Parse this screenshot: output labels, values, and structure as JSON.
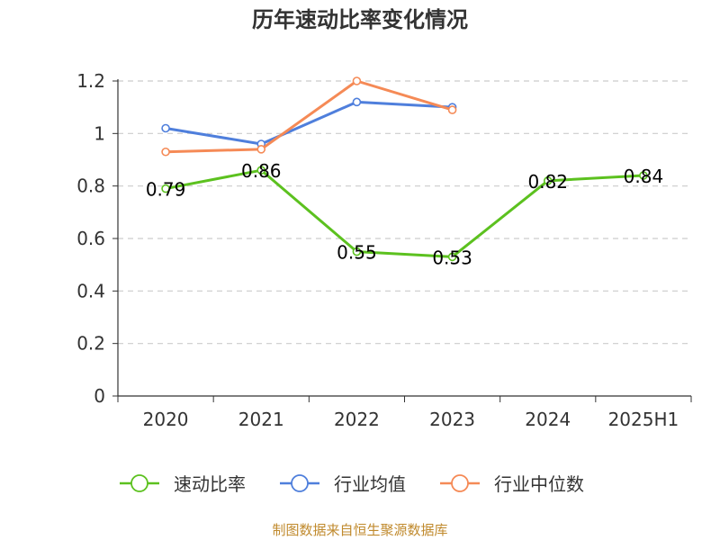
{
  "chart_data": {
    "type": "line",
    "title": "历年速动比率变化情况",
    "xlabel": "",
    "ylabel": "",
    "categories": [
      "2020",
      "2021",
      "2022",
      "2023",
      "2024",
      "2025H1"
    ],
    "ylim": [
      0,
      1.2
    ],
    "yticks": [
      "0",
      "0.2",
      "0.4",
      "0.6",
      "0.8",
      "1",
      "1.2"
    ],
    "grid": true,
    "legend_position": "bottom",
    "series": [
      {
        "name": "速动比率",
        "color": "#5cc11f",
        "values": [
          0.79,
          0.86,
          0.55,
          0.53,
          0.82,
          0.84
        ],
        "labels": [
          "0.79",
          "0.86",
          "0.55",
          "0.53",
          "0.82",
          "0.84"
        ],
        "show_labels": true
      },
      {
        "name": "行业均值",
        "color": "#4f7fdc",
        "values": [
          1.02,
          0.96,
          1.12,
          1.1,
          null,
          null
        ],
        "show_labels": false
      },
      {
        "name": "行业中位数",
        "color": "#f58a56",
        "values": [
          0.93,
          0.94,
          1.2,
          1.09,
          null,
          null
        ],
        "show_labels": false
      }
    ]
  },
  "source": "制图数据来自恒生聚源数据库"
}
